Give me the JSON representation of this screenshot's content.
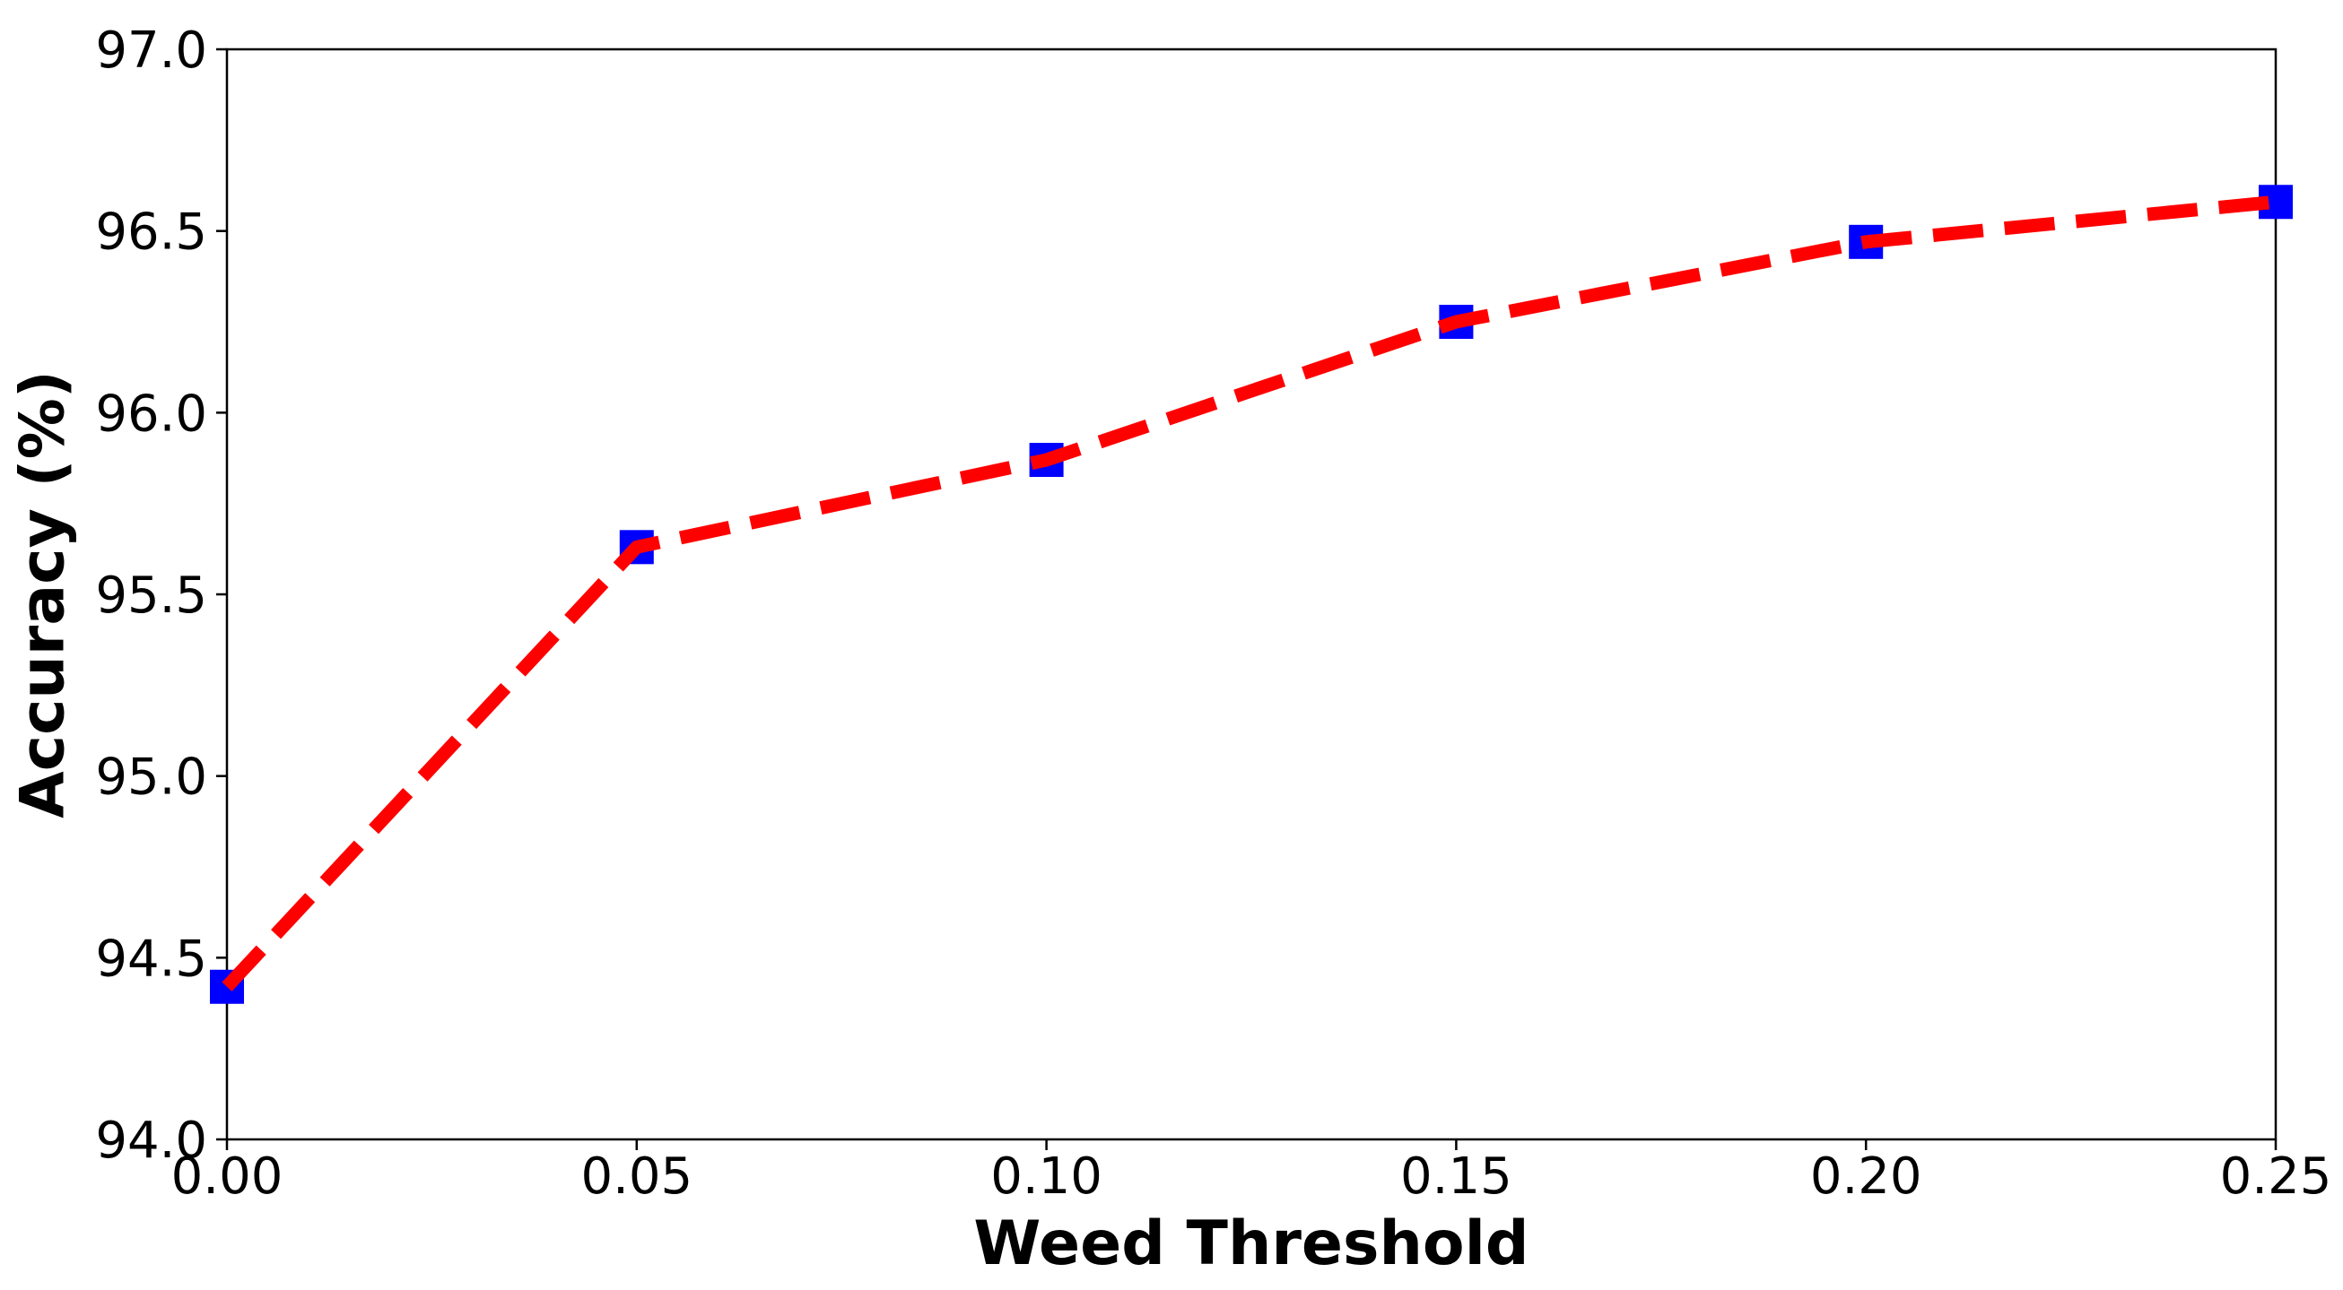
{
  "chart_data": {
    "type": "line",
    "xlabel": "Weed Threshold",
    "ylabel": "Accuracy (%)",
    "xlim": [
      0.0,
      0.25
    ],
    "ylim": [
      94.0,
      97.0
    ],
    "x_ticks": [
      "0.00",
      "0.05",
      "0.10",
      "0.15",
      "0.20",
      "0.25"
    ],
    "y_ticks": [
      "94.0",
      "94.5",
      "95.0",
      "95.5",
      "96.0",
      "96.5",
      "97.0"
    ],
    "grid": false,
    "legend": "none",
    "line_style": "dashed",
    "marker": "square",
    "line_color": "#ff0000",
    "marker_color": "#0000ff",
    "series": [
      {
        "x": [
          0.0,
          0.05,
          0.1,
          0.15,
          0.2,
          0.25
        ],
        "y": [
          94.42,
          95.63,
          95.87,
          96.25,
          96.47,
          96.58
        ]
      }
    ]
  }
}
